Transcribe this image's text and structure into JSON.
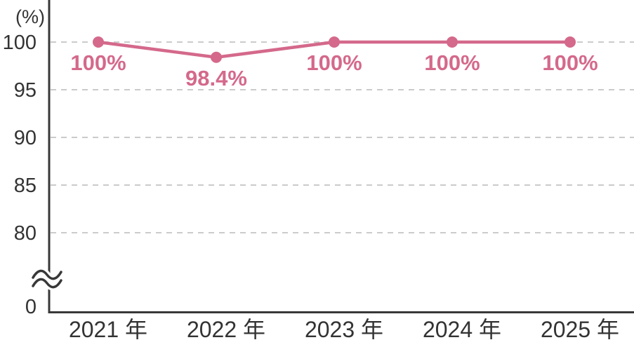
{
  "chart_data": {
    "type": "line",
    "unit_label": "(%)",
    "categories": [
      "2021 年",
      "2022 年",
      "2023 年",
      "2024 年",
      "2025 年"
    ],
    "values": [
      100,
      98.4,
      100,
      100,
      100
    ],
    "value_labels": [
      "100%",
      "98.4%",
      "100%",
      "100%",
      "100%"
    ],
    "y_ticks": [
      100,
      95,
      90,
      85,
      80
    ],
    "y_origin_label": "0",
    "axis_break": true,
    "ylim": [
      80,
      100
    ],
    "grid": "horizontal-dashed",
    "legend": "none",
    "colors": {
      "series": "#d4698b",
      "axis": "#383838",
      "text": "#333333",
      "grid": "#cbcbcb",
      "background": "#ffffff"
    }
  }
}
